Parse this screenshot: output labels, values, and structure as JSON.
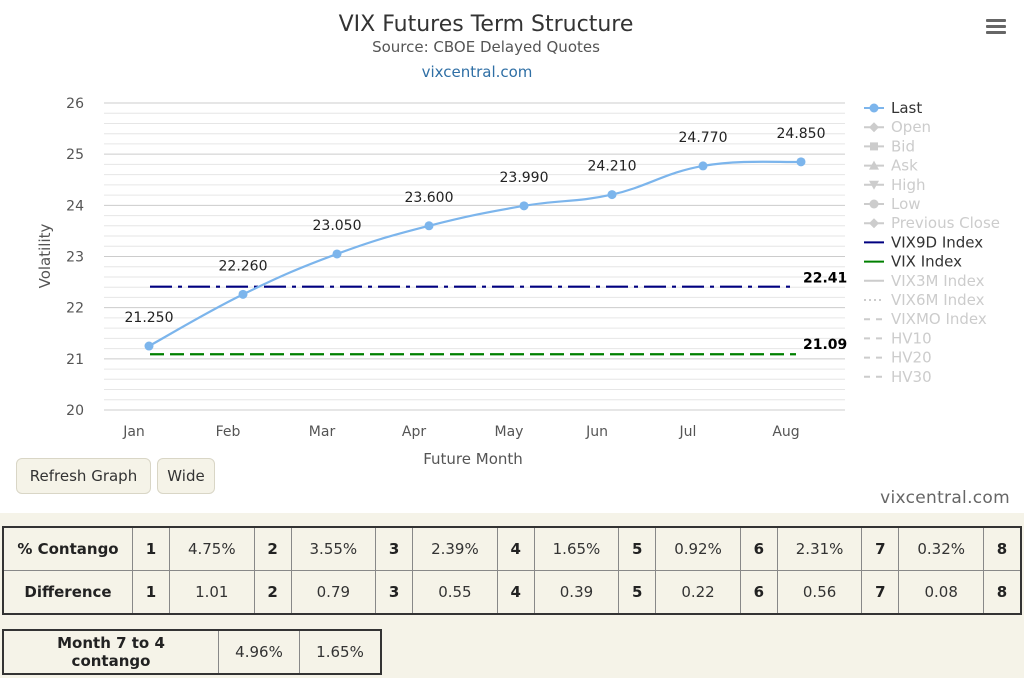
{
  "chart_data": {
    "type": "line",
    "title": "VIX Futures Term Structure",
    "subtitle": "Source: CBOE Delayed Quotes",
    "link": "vixcentral.com",
    "xlabel": "Future Month",
    "ylabel": "Volatility",
    "categories": [
      "Jan",
      "Feb",
      "Mar",
      "Apr",
      "May",
      "Jun",
      "Jul",
      "Aug"
    ],
    "ylim": [
      20,
      26
    ],
    "yticks": [
      "20",
      "21",
      "22",
      "23",
      "24",
      "25",
      "26"
    ],
    "grid": true,
    "series": [
      {
        "name": "Last",
        "values": [
          21.25,
          22.26,
          23.05,
          23.6,
          23.99,
          24.21,
          24.77,
          24.85
        ],
        "labels": [
          "21.250",
          "22.260",
          "23.050",
          "23.600",
          "23.990",
          "24.210",
          "24.770",
          "24.850"
        ],
        "color": "#7cb5ec"
      },
      {
        "name": "VIX9D Index",
        "value": 22.41,
        "label": "22.41",
        "color": "#000080",
        "dash": "dash-dot"
      },
      {
        "name": "VIX Index",
        "value": 21.09,
        "label": "21.09",
        "color": "#008000",
        "dash": "dash"
      }
    ],
    "legend": {
      "position": "right",
      "items": [
        {
          "name": "Last",
          "active": true,
          "symbol": "circle-line",
          "color": "#7cb5ec"
        },
        {
          "name": "Open",
          "active": false,
          "symbol": "diamond-line"
        },
        {
          "name": "Bid",
          "active": false,
          "symbol": "square-line"
        },
        {
          "name": "Ask",
          "active": false,
          "symbol": "triangle-line"
        },
        {
          "name": "High",
          "active": false,
          "symbol": "triangle-down-line"
        },
        {
          "name": "Low",
          "active": false,
          "symbol": "circle-line"
        },
        {
          "name": "Previous Close",
          "active": false,
          "symbol": "diamond-line"
        },
        {
          "name": "VIX9D Index",
          "active": true,
          "symbol": "line",
          "color": "#000080"
        },
        {
          "name": "VIX Index",
          "active": true,
          "symbol": "line",
          "color": "#008000"
        },
        {
          "name": "VIX3M Index",
          "active": false,
          "symbol": "line"
        },
        {
          "name": "VIX6M Index",
          "active": false,
          "symbol": "dotted-line"
        },
        {
          "name": "VIXMO Index",
          "active": false,
          "symbol": "dashed-line"
        },
        {
          "name": "HV10",
          "active": false,
          "symbol": "dashed-line"
        },
        {
          "name": "HV20",
          "active": false,
          "symbol": "dashed-line"
        },
        {
          "name": "HV30",
          "active": false,
          "symbol": "dashed-line"
        }
      ]
    }
  },
  "buttons": {
    "refresh": "Refresh Graph",
    "wide": "Wide"
  },
  "footer": {
    "credit": "vixcentral.com"
  },
  "icons": {
    "menu": "hamburger-menu-icon"
  },
  "contango_table": {
    "rows": [
      {
        "label": "% Contango",
        "cells": [
          [
            "1",
            "4.75%"
          ],
          [
            "2",
            "3.55%"
          ],
          [
            "3",
            "2.39%"
          ],
          [
            "4",
            "1.65%"
          ],
          [
            "5",
            "0.92%"
          ],
          [
            "6",
            "2.31%"
          ],
          [
            "7",
            "0.32%"
          ],
          [
            "8",
            ""
          ]
        ]
      },
      {
        "label": "Difference",
        "cells": [
          [
            "1",
            "1.01"
          ],
          [
            "2",
            "0.79"
          ],
          [
            "3",
            "0.55"
          ],
          [
            "4",
            "0.39"
          ],
          [
            "5",
            "0.22"
          ],
          [
            "6",
            "0.56"
          ],
          [
            "7",
            "0.08"
          ],
          [
            "8",
            ""
          ]
        ]
      }
    ]
  },
  "month7to4": {
    "label": "Month 7 to 4 contango",
    "values": [
      "4.96%",
      "1.65%"
    ]
  }
}
